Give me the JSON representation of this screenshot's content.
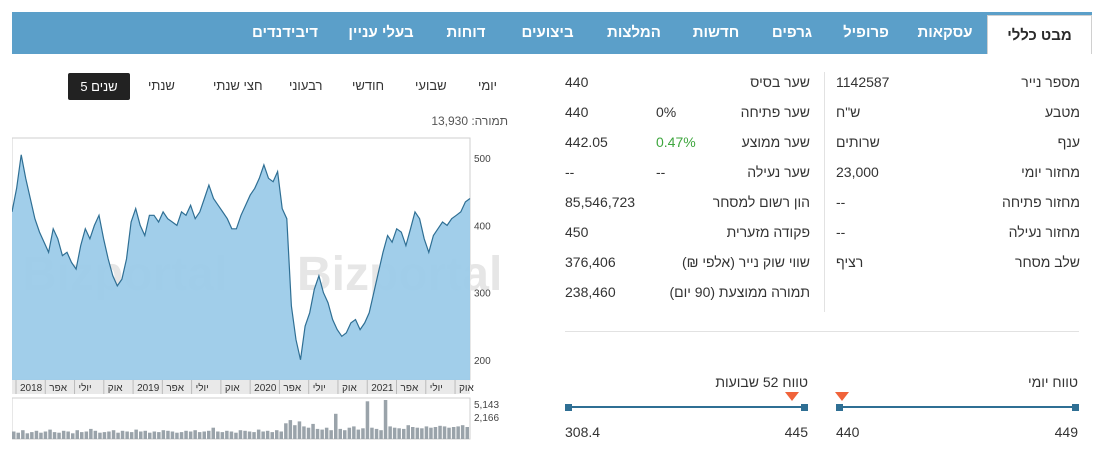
{
  "tabs": [
    {
      "label": "מבט כללי",
      "active": true
    },
    {
      "label": "עסקאות"
    },
    {
      "label": "פרופיל"
    },
    {
      "label": "גרפים"
    },
    {
      "label": "חדשות"
    },
    {
      "label": "המלצות"
    },
    {
      "label": "ביצועים"
    },
    {
      "label": "דוחות"
    },
    {
      "label": "בעלי עניין"
    },
    {
      "label": "דיבידנדים"
    }
  ],
  "info": {
    "col1": [
      {
        "label": "מספר נייר",
        "value": "1142587"
      },
      {
        "label": "מטבע",
        "value": "ש\"ח"
      },
      {
        "label": "ענף",
        "value": "שרותים"
      },
      {
        "label": "מחזור יומי",
        "value": "23,000"
      },
      {
        "label": "מחזור פתיחה",
        "value": "--"
      },
      {
        "label": "מחזור נעילה",
        "value": "--"
      },
      {
        "label": "שלב מסחר",
        "value": "רציף"
      }
    ],
    "col2": [
      {
        "label": "שער בסיס",
        "change": "",
        "value": "440"
      },
      {
        "label": "שער פתיחה",
        "change": "0%",
        "value": "440"
      },
      {
        "label": "שער ממוצע",
        "change": "0.47%",
        "value": "442.05"
      },
      {
        "label": "שער נעילה",
        "change": "--",
        "value": "--"
      },
      {
        "label": "הון רשום למסחר",
        "change": "",
        "value": "85,546,723"
      },
      {
        "label": "פקודה מזערית",
        "change": "",
        "value": "450"
      },
      {
        "label": "שווי שוק נייר (אלפי ₪)",
        "change": "",
        "value": "376,406"
      },
      {
        "label": "תמורה ממוצעת (90 יום)",
        "change": "",
        "value": "238,460"
      }
    ]
  },
  "ranges": {
    "daily": {
      "title": "טווח יומי",
      "low": "440",
      "high": "449",
      "marker": 0.0
    },
    "week52": {
      "title": "טווח 52 שבועות",
      "low": "308.4",
      "high": "445",
      "marker": 0.97
    }
  },
  "periods": [
    "יומי",
    "שבועי",
    "חודשי",
    "רבעוני",
    "חצי שנתי",
    "שנתי",
    "5 שנים"
  ],
  "active_period": "5 שנים",
  "turnover_label": "תמורה: 13,930",
  "colors": {
    "tabs_bg": "#5b9fc9",
    "area_fill": "#9ccbe9",
    "area_line": "#2f6f94",
    "green": "#3ea63e",
    "marker": "#f0633a"
  },
  "chart_data": {
    "type": "area",
    "watermark": "Bizportal",
    "y_ticks": [
      200,
      300,
      400,
      500
    ],
    "ylim": [
      170,
      530
    ],
    "x_ticks": [
      "2018",
      "אפר",
      "יולי",
      "אוק",
      "2019",
      "אפר",
      "יולי",
      "אוק",
      "2020",
      "אפר",
      "יולי",
      "אוק",
      "2021",
      "אפר",
      "יולי",
      "אוק"
    ],
    "series_values": [
      420,
      455,
      505,
      470,
      440,
      410,
      390,
      375,
      360,
      395,
      380,
      355,
      360,
      345,
      335,
      370,
      395,
      380,
      400,
      415,
      380,
      350,
      325,
      310,
      320,
      350,
      405,
      425,
      400,
      385,
      415,
      415,
      405,
      420,
      410,
      405,
      400,
      420,
      415,
      430,
      410,
      420,
      440,
      460,
      440,
      430,
      420,
      410,
      395,
      395,
      415,
      430,
      445,
      455,
      470,
      490,
      470,
      465,
      480,
      425,
      410,
      280,
      230,
      200,
      250,
      270,
      305,
      325,
      300,
      285,
      260,
      245,
      235,
      240,
      255,
      260,
      245,
      255,
      270,
      300,
      330,
      360,
      385,
      375,
      395,
      390,
      370,
      395,
      420,
      410,
      380,
      360,
      385,
      395,
      405,
      400,
      410,
      415,
      420,
      435,
      440
    ],
    "volume_ticks": [
      "5,143",
      "2,166"
    ],
    "volume_values": [
      12,
      10,
      14,
      9,
      11,
      13,
      10,
      12,
      15,
      11,
      10,
      13,
      12,
      9,
      14,
      11,
      12,
      16,
      13,
      10,
      11,
      12,
      14,
      10,
      13,
      12,
      11,
      15,
      12,
      13,
      10,
      12,
      11,
      14,
      13,
      12,
      10,
      11,
      13,
      12,
      14,
      11,
      12,
      13,
      18,
      12,
      11,
      13,
      12,
      10,
      14,
      13,
      12,
      11,
      15,
      12,
      13,
      11,
      14,
      12,
      25,
      30,
      22,
      28,
      20,
      18,
      24,
      16,
      15,
      18,
      14,
      40,
      16,
      14,
      18,
      20,
      15,
      17,
      60,
      18,
      16,
      14,
      62,
      20,
      18,
      17,
      16,
      22,
      19,
      18,
      17,
      20,
      18,
      19,
      21,
      20,
      18,
      19,
      20,
      22,
      19
    ]
  }
}
